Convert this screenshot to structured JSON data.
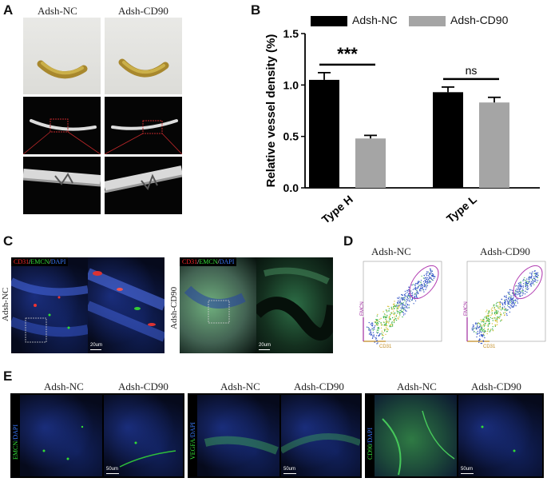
{
  "panels": {
    "A": "A",
    "B": "B",
    "C": "C",
    "D": "D",
    "E": "E"
  },
  "panel_a": {
    "groups": [
      "Adsh-NC",
      "Adsh-CD90"
    ]
  },
  "panel_c": {
    "stain_label_parts": [
      "CD31",
      "/",
      "EMCN",
      "/",
      "DAPI"
    ],
    "stain_colors": [
      "#ff2a2a",
      "#ffffff",
      "#35e03a",
      "#ffffff",
      "#3a7bff"
    ],
    "row_labels": [
      "Adsh-NC",
      "Adsh-CD90"
    ],
    "scale": "20um"
  },
  "panel_d": {
    "groups": [
      "Adsh-NC",
      "Adsh-CD90"
    ],
    "y_axis": "EMCN",
    "x_axis": "CD31"
  },
  "panel_e": {
    "groups": [
      "Adsh-NC",
      "Adsh-CD90",
      "Adsh-NC",
      "Adsh-CD90",
      "Adsh-NC",
      "Adsh-CD90"
    ],
    "row_labels": [
      {
        "a": "EMCN",
        "b": "/DAPI"
      },
      {
        "a": "VEGFA",
        "b": "/DAPI"
      },
      {
        "a": "CD90",
        "b": "/DAPI"
      }
    ],
    "scale": "50um"
  },
  "chart_data": {
    "type": "bar",
    "categories": [
      "Type H",
      "Type L"
    ],
    "series": [
      {
        "name": "Adsh-NC",
        "values": [
          1.05,
          0.93
        ],
        "errors": [
          0.07,
          0.05
        ],
        "color": "#000000"
      },
      {
        "name": "Adsh-CD90",
        "values": [
          0.48,
          0.83
        ],
        "errors": [
          0.03,
          0.05
        ],
        "color": "#a5a5a5"
      }
    ],
    "ylabel": "Relative vessel density (%)",
    "ylim": [
      0,
      1.5
    ],
    "yticks": [
      0.0,
      0.5,
      1.0,
      1.5
    ],
    "ytick_labels": [
      "0.0",
      "0.5",
      "1.0",
      "1.5"
    ],
    "significance": [
      "***",
      "ns"
    ],
    "legend_position": "top"
  }
}
